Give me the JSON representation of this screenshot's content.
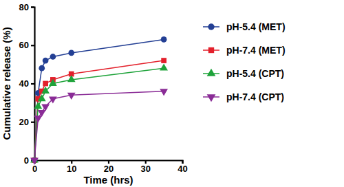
{
  "chart_data": {
    "type": "line",
    "x_label": "Time (hrs)",
    "y_label": "Cumulative release (%)",
    "x": [
      0,
      1,
      2,
      3,
      5,
      10,
      35
    ],
    "series": [
      {
        "name": "pH-5.4 (MET)",
        "color": "#233f94",
        "marker": "circle",
        "values": [
          0,
          35,
          48,
          52,
          54,
          56,
          63
        ]
      },
      {
        "name": "pH-7.4 (MET)",
        "color": "#e3202b",
        "marker": "square",
        "values": [
          0,
          32,
          36,
          40,
          42,
          45,
          52
        ]
      },
      {
        "name": "pH-5.4 (CPT)",
        "color": "#1ea33a",
        "marker": "triangle",
        "values": [
          0,
          28,
          32,
          36,
          40,
          42,
          48
        ]
      },
      {
        "name": "pH-7.4 (CPT)",
        "color": "#8a2c96",
        "marker": "triangle-down",
        "values": [
          0,
          22,
          25,
          28,
          32,
          34,
          36
        ]
      }
    ],
    "xlim": [
      0,
      40
    ],
    "xticks": [
      0,
      10,
      20,
      30,
      40
    ],
    "ylim": [
      0,
      80
    ],
    "yticks": [
      0,
      20,
      40,
      60,
      80
    ],
    "grid": false,
    "legend": "right"
  }
}
